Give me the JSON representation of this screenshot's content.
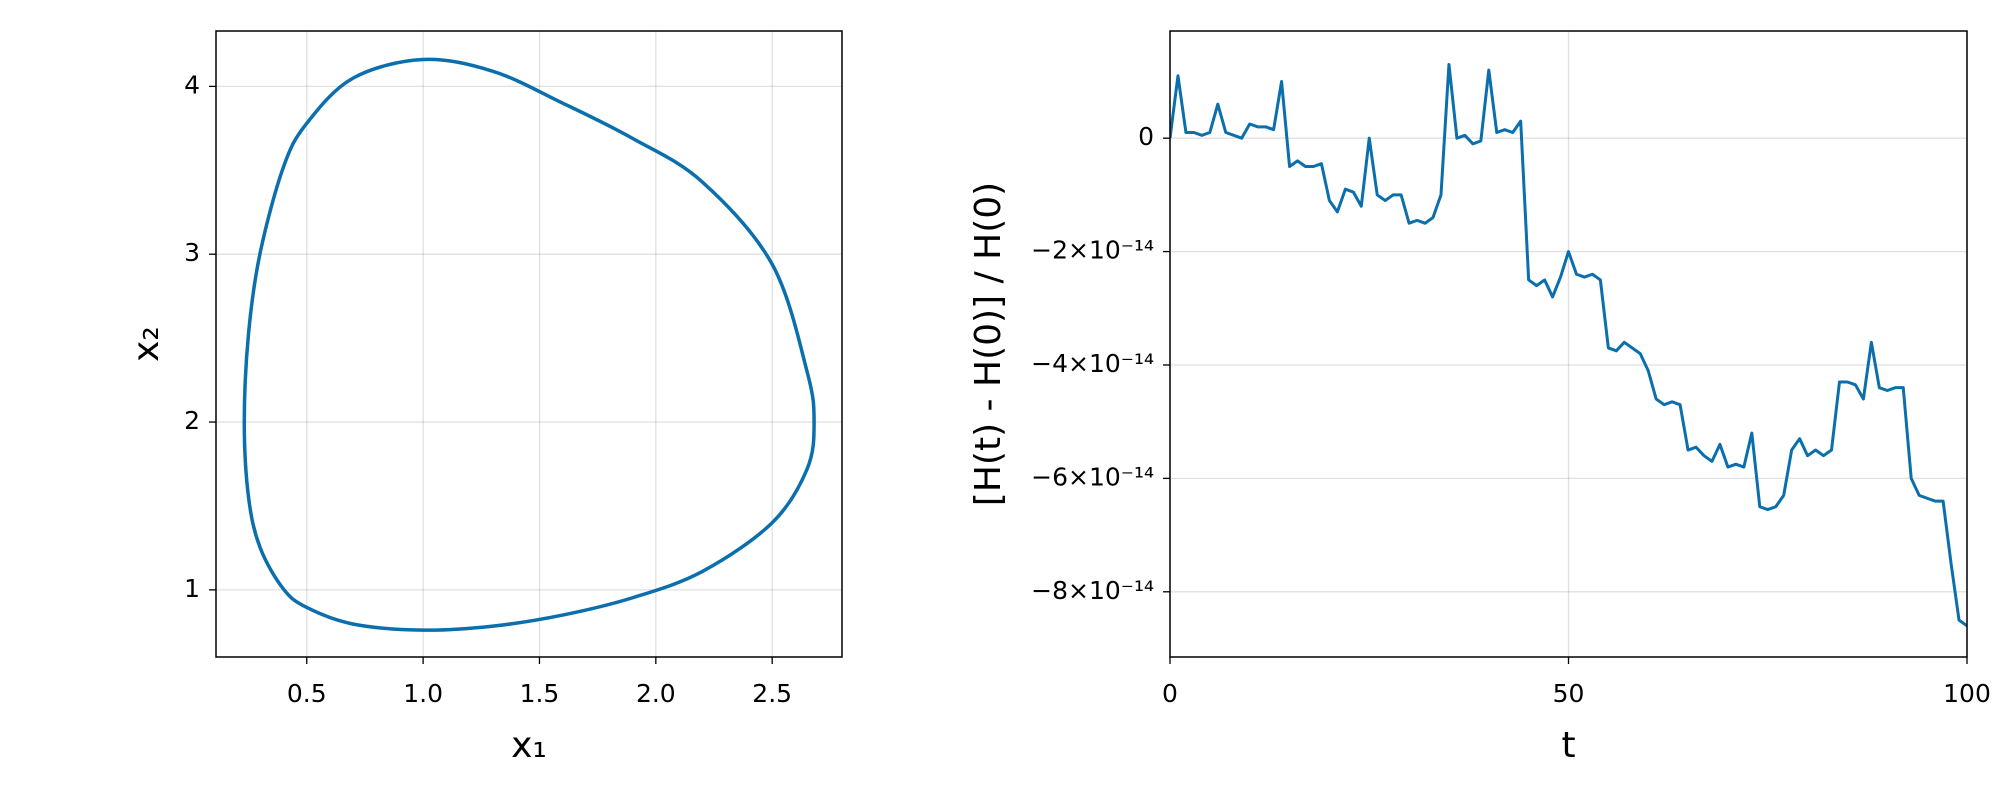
{
  "chart_data": [
    {
      "type": "line",
      "xlabel": "x₁",
      "ylabel": "x₂",
      "color": "#0a6fac",
      "grid": true,
      "closed": true,
      "xlim": [
        0.11,
        2.8
      ],
      "ylim": [
        0.6,
        4.33
      ],
      "xticks": [
        0.5,
        {
          "value": 1,
          "label": "1.0"
        },
        1.5,
        {
          "value": 2,
          "label": "2.0"
        },
        2.5
      ],
      "yticks": [
        1,
        2,
        3,
        4
      ],
      "x": [
        0.2315,
        0.25,
        0.3,
        0.4,
        0.5,
        0.7,
        1.0,
        1.3,
        1.6,
        1.9,
        2.2,
        2.5,
        2.65,
        2.68,
        2.65,
        2.5,
        2.2,
        1.9,
        1.6,
        1.3,
        1.0,
        0.7,
        0.5,
        0.4,
        0.3,
        0.25
      ],
      "y": [
        2.0,
        2.53,
        3.01,
        3.52,
        3.78,
        4.05,
        4.16,
        4.09,
        3.9,
        3.69,
        3.43,
        2.94,
        2.3,
        2.0,
        1.72,
        1.4,
        1.11,
        0.953,
        0.85,
        0.784,
        0.76,
        0.796,
        0.895,
        1.005,
        1.25,
        1.55
      ]
    },
    {
      "type": "line",
      "xlabel": "t",
      "ylabel": "[H(t) - H(0)] / H(0)",
      "color": "#0a6fac",
      "grid": true,
      "closed": false,
      "xlim": [
        0,
        100
      ],
      "ylim": [
        -9.15e-14,
        1.89e-14
      ],
      "xticks": [
        0,
        50,
        100
      ],
      "yticks": [
        0,
        {
          "value": -2e-14,
          "label": "−2×10⁻¹⁴"
        },
        {
          "value": -4e-14,
          "label": "−4×10⁻¹⁴"
        },
        {
          "value": -6e-14,
          "label": "−6×10⁻¹⁴"
        },
        {
          "value": -8e-14,
          "label": "−8×10⁻¹⁴"
        }
      ],
      "x": [
        0,
        1,
        2,
        3,
        4,
        5,
        6,
        7,
        8,
        9,
        10,
        11,
        12,
        13,
        14,
        15,
        16,
        17,
        18,
        19,
        20,
        21,
        22,
        23,
        24,
        25,
        26,
        27,
        28,
        29,
        30,
        31,
        32,
        33,
        34,
        35,
        36,
        37,
        38,
        39,
        40,
        41,
        42,
        43,
        44,
        45,
        46,
        47,
        48,
        49,
        50,
        51,
        52,
        53,
        54,
        55,
        56,
        57,
        58,
        59,
        60,
        61,
        62,
        63,
        64,
        65,
        66,
        67,
        68,
        69,
        70,
        71,
        72,
        73,
        74,
        75,
        76,
        77,
        78,
        79,
        80,
        81,
        82,
        83,
        84,
        85,
        86,
        87,
        88,
        89,
        90,
        91,
        92,
        93,
        94,
        95,
        96,
        97,
        98,
        99,
        100
      ],
      "y": [
        0,
        1.1e-14,
        1e-15,
        1e-15,
        5e-16,
        1e-15,
        6e-15,
        1e-15,
        5e-16,
        0,
        2.5e-15,
        2e-15,
        2e-15,
        1.5e-15,
        1e-14,
        -5e-15,
        -4e-15,
        -5e-15,
        -5e-15,
        -4.5e-15,
        -1.1e-14,
        -1.3e-14,
        -9e-15,
        -9.5e-15,
        -1.2e-14,
        0,
        -1e-14,
        -1.1e-14,
        -1e-14,
        -1e-14,
        -1.5e-14,
        -1.45e-14,
        -1.5e-14,
        -1.4e-14,
        -1e-14,
        1.3e-14,
        0,
        5e-16,
        -1e-15,
        -5e-16,
        1.2e-14,
        1e-15,
        1.5e-15,
        1e-15,
        3e-15,
        -2.5e-14,
        -2.6e-14,
        -2.5e-14,
        -2.8e-14,
        -2.45e-14,
        -2e-14,
        -2.4e-14,
        -2.45e-14,
        -2.4e-14,
        -2.5e-14,
        -3.7e-14,
        -3.75e-14,
        -3.6e-14,
        -3.7e-14,
        -3.8e-14,
        -4.1e-14,
        -4.6e-14,
        -4.7e-14,
        -4.65e-14,
        -4.7e-14,
        -5.5e-14,
        -5.45e-14,
        -5.6e-14,
        -5.7e-14,
        -5.4e-14,
        -5.8e-14,
        -5.75e-14,
        -5.8e-14,
        -5.2e-14,
        -6.5e-14,
        -6.55e-14,
        -6.5e-14,
        -6.3e-14,
        -5.5e-14,
        -5.3e-14,
        -5.6e-14,
        -5.5e-14,
        -5.6e-14,
        -5.5e-14,
        -4.3e-14,
        -4.3e-14,
        -4.35e-14,
        -4.6e-14,
        -3.6e-14,
        -4.4e-14,
        -4.45e-14,
        -4.4e-14,
        -4.4e-14,
        -6e-14,
        -6.3e-14,
        -6.35e-14,
        -6.4e-14,
        -6.4e-14,
        -7.5e-14,
        -8.5e-14,
        -8.6e-14
      ]
    }
  ]
}
